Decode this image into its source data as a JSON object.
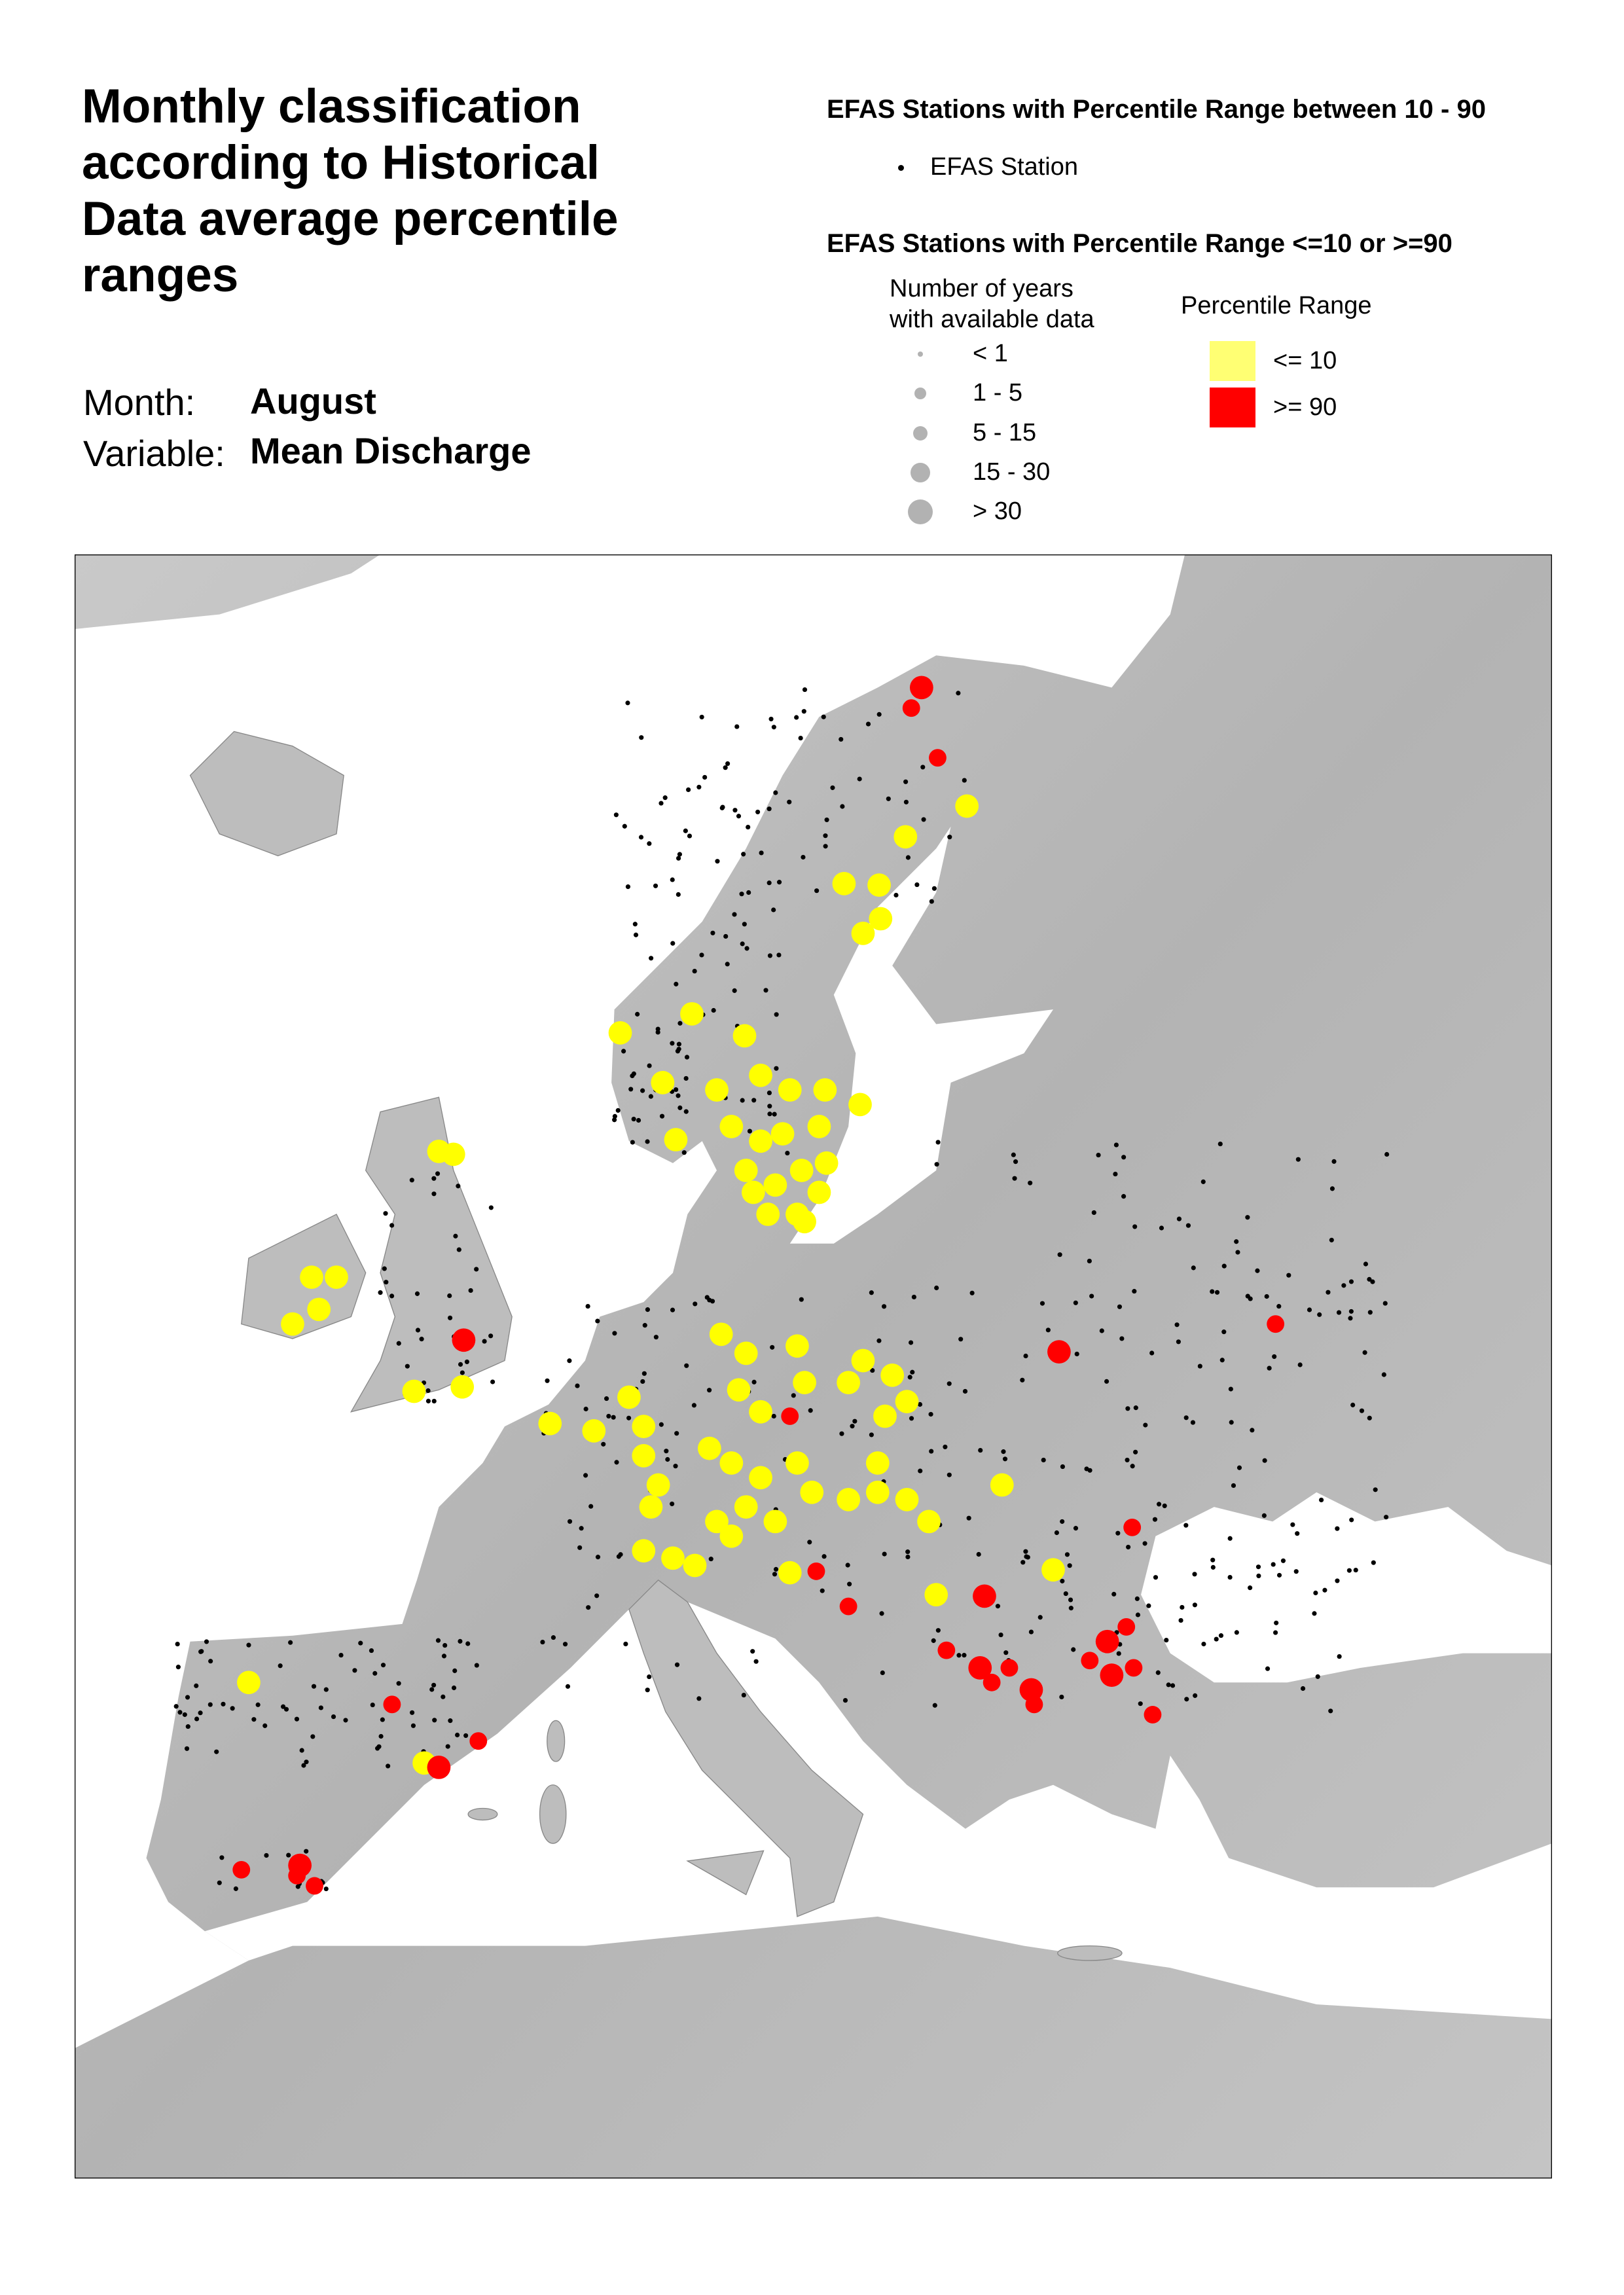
{
  "title": "Monthly classification according to Historical Data average percentile ranges",
  "month": {
    "label": "Month:",
    "value": "August"
  },
  "variable": {
    "label": "Variable:",
    "value": "Mean Discharge"
  },
  "legend": {
    "normal_heading": "EFAS Stations with Percentile Range between 10 - 90",
    "normal_item": "EFAS Station",
    "extreme_heading": "EFAS Stations with Percentile Range <=10 or >=90",
    "years_heading_line1": "Number of years",
    "years_heading_line2": "with available data",
    "years_classes": [
      "< 1",
      "1 - 5",
      "5 - 15",
      "15 - 30",
      "> 30"
    ],
    "percentile_heading": "Percentile Range",
    "percentile_classes": [
      {
        "label": "<= 10",
        "color": "#ffff73"
      },
      {
        "label": ">= 90",
        "color": "#ff0000"
      }
    ]
  },
  "colors": {
    "low": "#ffff00",
    "high": "#ff0000",
    "station": "#000000",
    "land": "#b9b9b9",
    "sea": "#ffffff"
  }
}
